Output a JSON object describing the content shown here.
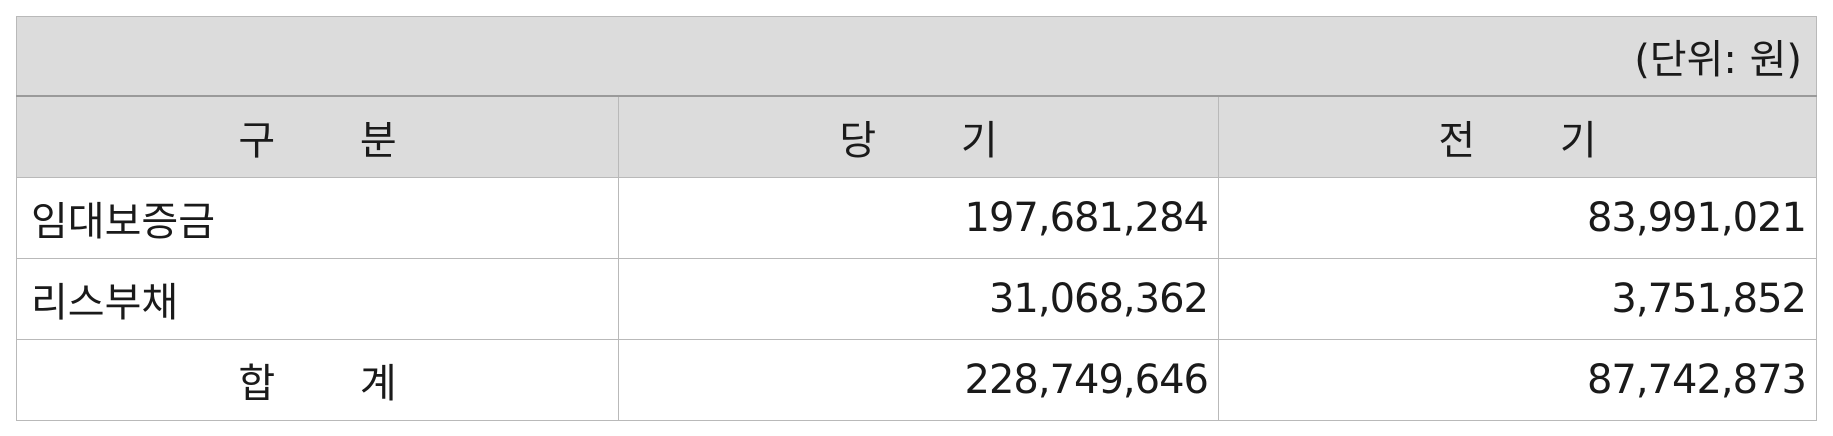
{
  "table": {
    "unit_note": "(단위: 원)",
    "headers": [
      "구 분",
      "당 기",
      "전 기"
    ],
    "rows": [
      {
        "label": "임대보증금",
        "current": "197,681,284",
        "previous": "83,991,021"
      },
      {
        "label": "리스부채",
        "current": "31,068,362",
        "previous": "3,751,852"
      },
      {
        "label": "합 계",
        "current": "228,749,646",
        "previous": "87,742,873"
      }
    ]
  }
}
